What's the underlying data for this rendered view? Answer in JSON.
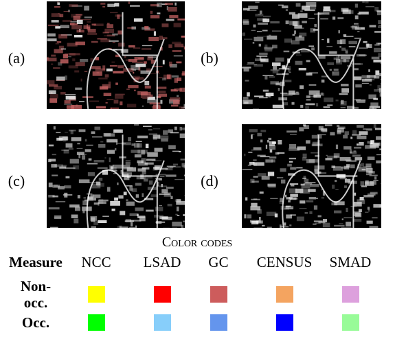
{
  "panels": [
    {
      "label": "(a)",
      "tint": "#c86464"
    },
    {
      "label": "(b)",
      "tint": "#c8c8c8"
    },
    {
      "label": "(c)",
      "tint": "#c8c8c8"
    },
    {
      "label": "(d)",
      "tint": "#d2d2d2"
    }
  ],
  "color_codes": {
    "title": "Color codes",
    "header": [
      "Measure",
      "NCC",
      "LSAD",
      "GC",
      "CENSUS",
      "SMAD"
    ],
    "rows": [
      {
        "label": "Non-occ.",
        "colors": [
          "#ffff00",
          "#ff0000",
          "#cd5c5c",
          "#f4a460",
          "#dda0dd"
        ]
      },
      {
        "label": "Occ.",
        "colors": [
          "#00ff00",
          "#87cefa",
          "#6495ed",
          "#0000ff",
          "#98fb98"
        ]
      }
    ]
  }
}
